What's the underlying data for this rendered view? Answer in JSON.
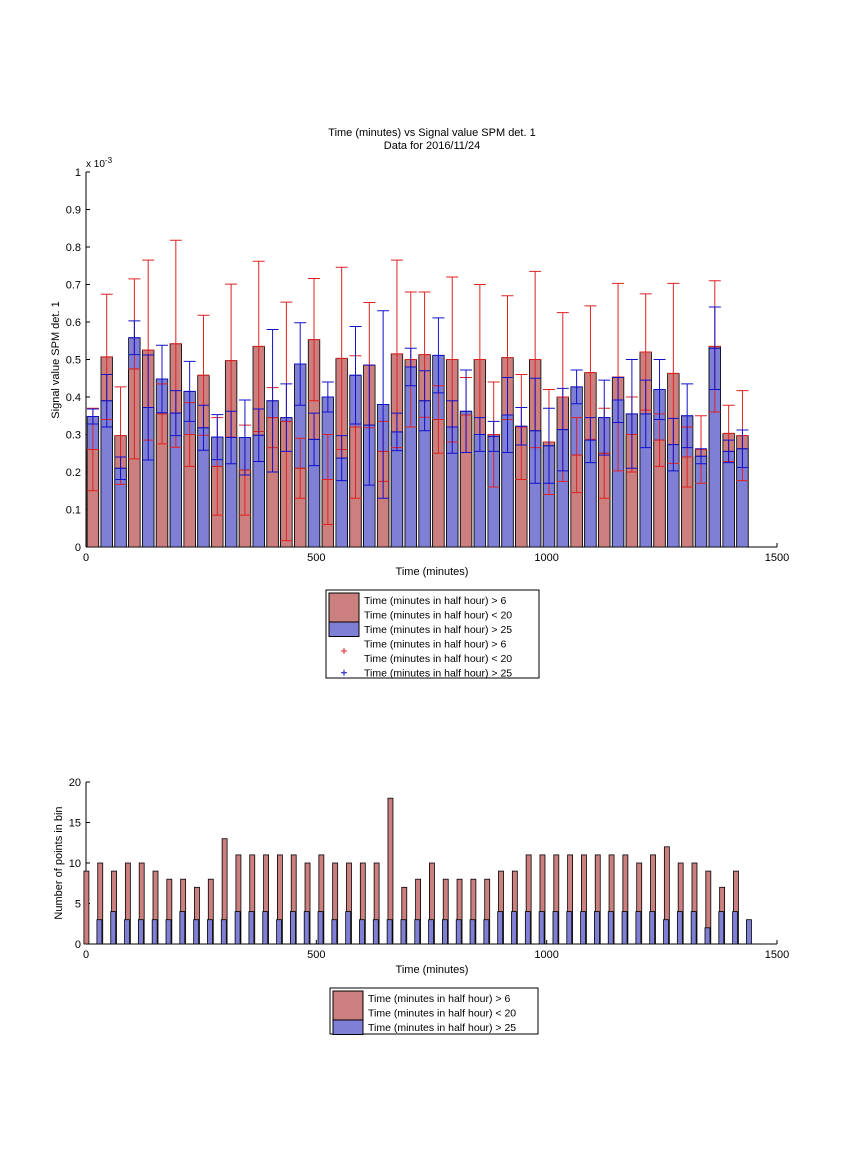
{
  "chart_data": [
    {
      "type": "bar",
      "title": "Time (minutes) vs Signal value SPM det. 1",
      "subtitle": "Data for 2016/11/24",
      "xlabel": "Time (minutes)",
      "ylabel": "Signal value SPM det. 1",
      "y_exponent_label": "x 10",
      "y_exponent_power": "-3",
      "xlim": [
        0,
        1500
      ],
      "ylim": [
        0,
        1
      ],
      "xticks": [
        0,
        500,
        1000,
        1500
      ],
      "yticks": [
        0,
        0.1,
        0.2,
        0.3,
        0.4,
        0.5,
        0.6,
        0.7,
        0.8,
        0.9,
        1
      ],
      "grid": false,
      "legend_position": "below",
      "x": [
        15,
        45,
        75,
        105,
        135,
        165,
        195,
        225,
        255,
        285,
        315,
        345,
        375,
        405,
        435,
        465,
        495,
        525,
        555,
        585,
        615,
        645,
        675,
        705,
        735,
        765,
        795,
        825,
        855,
        885,
        915,
        945,
        975,
        1005,
        1035,
        1065,
        1095,
        1125,
        1155,
        1185,
        1215,
        1245,
        1275,
        1305,
        1335,
        1365,
        1395,
        1425
      ],
      "series": [
        {
          "name": "Time (minutes in half hour) > 6\nTime (minutes in half hour) < 20",
          "color": "#cc7f7f",
          "error_color": "#dd2222",
          "values": [
            0.26,
            0.507,
            0.297,
            0.475,
            0.525,
            0.355,
            0.542,
            0.3,
            0.458,
            0.215,
            0.497,
            0.205,
            0.535,
            0.345,
            0.335,
            0.21,
            0.553,
            0.18,
            0.503,
            0.32,
            0.485,
            0.255,
            0.515,
            0.5,
            0.513,
            0.34,
            0.5,
            0.352,
            0.5,
            0.3,
            0.505,
            0.32,
            0.5,
            0.28,
            0.4,
            0.245,
            0.465,
            0.25,
            0.453,
            0.3,
            0.52,
            0.285,
            0.463,
            0.24,
            0.26,
            0.535,
            0.303,
            0.297
          ],
          "errors": [
            0.11,
            0.167,
            0.13,
            0.24,
            0.24,
            0.08,
            0.276,
            0.085,
            0.16,
            0.13,
            0.204,
            0.12,
            0.227,
            0.08,
            0.318,
            0.08,
            0.163,
            0.12,
            0.243,
            0.19,
            0.167,
            0.08,
            0.25,
            0.18,
            0.167,
            0.09,
            0.22,
            0.1,
            0.2,
            0.14,
            0.165,
            0.14,
            0.235,
            0.14,
            0.225,
            0.1,
            0.178,
            0.12,
            0.25,
            0.1,
            0.155,
            0.07,
            0.24,
            0.08,
            0.09,
            0.175,
            0.075,
            0.12
          ]
        },
        {
          "name": "Time (minutes in half hour) > 25",
          "color": "#7f7fd5",
          "error_color": "#1111cc",
          "values": [
            0.348,
            0.39,
            0.21,
            0.558,
            0.372,
            0.448,
            0.357,
            0.415,
            0.318,
            0.293,
            0.292,
            0.292,
            0.298,
            0.39,
            0.345,
            0.488,
            0.287,
            0.4,
            0.237,
            0.458,
            0.325,
            0.38,
            0.307,
            0.48,
            0.39,
            0.511,
            0.32,
            0.362,
            0.3,
            0.295,
            0.352,
            0.322,
            0.31,
            0.27,
            0.313,
            0.427,
            0.285,
            0.345,
            0.392,
            0.355,
            0.355,
            0.42,
            0.273,
            0.35,
            0.242,
            0.53,
            0.255,
            0.262
          ],
          "errors": [
            0.02,
            0.07,
            0.03,
            0.045,
            0.14,
            0.09,
            0.06,
            0.08,
            0.06,
            0.06,
            0.07,
            0.1,
            0.07,
            0.19,
            0.09,
            0.11,
            0.07,
            0.04,
            0.06,
            0.13,
            0.16,
            0.25,
            0.05,
            0.05,
            0.08,
            0.1,
            0.07,
            0.11,
            0.045,
            0.04,
            0.1,
            0.05,
            0.14,
            0.1,
            0.11,
            0.045,
            0.06,
            0.1,
            0.06,
            0.145,
            0.09,
            0.08,
            0.07,
            0.085,
            0.02,
            0.11,
            0.03,
            0.05
          ]
        }
      ],
      "legend": [
        {
          "kind": "bar",
          "color": "#cc7f7f",
          "lines": [
            "Time (minutes in half hour) > 6",
            "Time (minutes in half hour) < 20"
          ]
        },
        {
          "kind": "bar",
          "color": "#7f7fd5",
          "lines": [
            "Time (minutes in half hour) > 25"
          ]
        },
        {
          "kind": "marker",
          "color": "#dd2222",
          "lines": [
            "Time (minutes in half hour) > 6",
            "Time (minutes in half hour) < 20"
          ]
        },
        {
          "kind": "marker",
          "color": "#1111cc",
          "lines": [
            "Time (minutes in half hour) > 25"
          ]
        }
      ]
    },
    {
      "type": "bar",
      "xlabel": "Time (minutes)",
      "ylabel": "Number of points in bin",
      "xlim": [
        0,
        1500
      ],
      "ylim": [
        0,
        20
      ],
      "xticks": [
        0,
        500,
        1000,
        1500
      ],
      "yticks": [
        0,
        5,
        10,
        15,
        20
      ],
      "grid": false,
      "legend_position": "below",
      "x": [
        15,
        45,
        75,
        105,
        135,
        165,
        195,
        225,
        255,
        285,
        315,
        345,
        375,
        405,
        435,
        465,
        495,
        525,
        555,
        585,
        615,
        645,
        675,
        705,
        735,
        765,
        795,
        825,
        855,
        885,
        915,
        945,
        975,
        1005,
        1035,
        1065,
        1095,
        1125,
        1155,
        1185,
        1215,
        1245,
        1275,
        1305,
        1335,
        1365,
        1395,
        1425
      ],
      "series": [
        {
          "name": "Time (minutes in half hour) > 6\nTime (minutes in half hour) < 20",
          "color": "#cc7f7f",
          "values": [
            9,
            10,
            9,
            10,
            10,
            9,
            8,
            8,
            7,
            8,
            13,
            11,
            11,
            11,
            11,
            11,
            10,
            11,
            10,
            10,
            10,
            10,
            18,
            7,
            8,
            10,
            8,
            8,
            8,
            8,
            9,
            9,
            11,
            11,
            11,
            11,
            11,
            11,
            11,
            11,
            10,
            11,
            12,
            10,
            10,
            9,
            7,
            9
          ]
        },
        {
          "name": "Time (minutes in half hour) > 25",
          "color": "#7f7fd5",
          "values": [
            3,
            4,
            3,
            3,
            3,
            3,
            4,
            3,
            3,
            3,
            4,
            4,
            4,
            3,
            4,
            4,
            4,
            3,
            4,
            3,
            3,
            3,
            3,
            3,
            3,
            3,
            3,
            3,
            3,
            4,
            4,
            4,
            4,
            4,
            4,
            4,
            4,
            4,
            4,
            4,
            4,
            3,
            4,
            4,
            2,
            4,
            4,
            3
          ]
        }
      ],
      "legend": [
        {
          "kind": "bar",
          "color": "#cc7f7f",
          "lines": [
            "Time (minutes in half hour) > 6",
            "Time (minutes in half hour) < 20"
          ]
        },
        {
          "kind": "bar",
          "color": "#7f7fd5",
          "lines": [
            "Time (minutes in half hour) > 25"
          ]
        }
      ]
    }
  ]
}
